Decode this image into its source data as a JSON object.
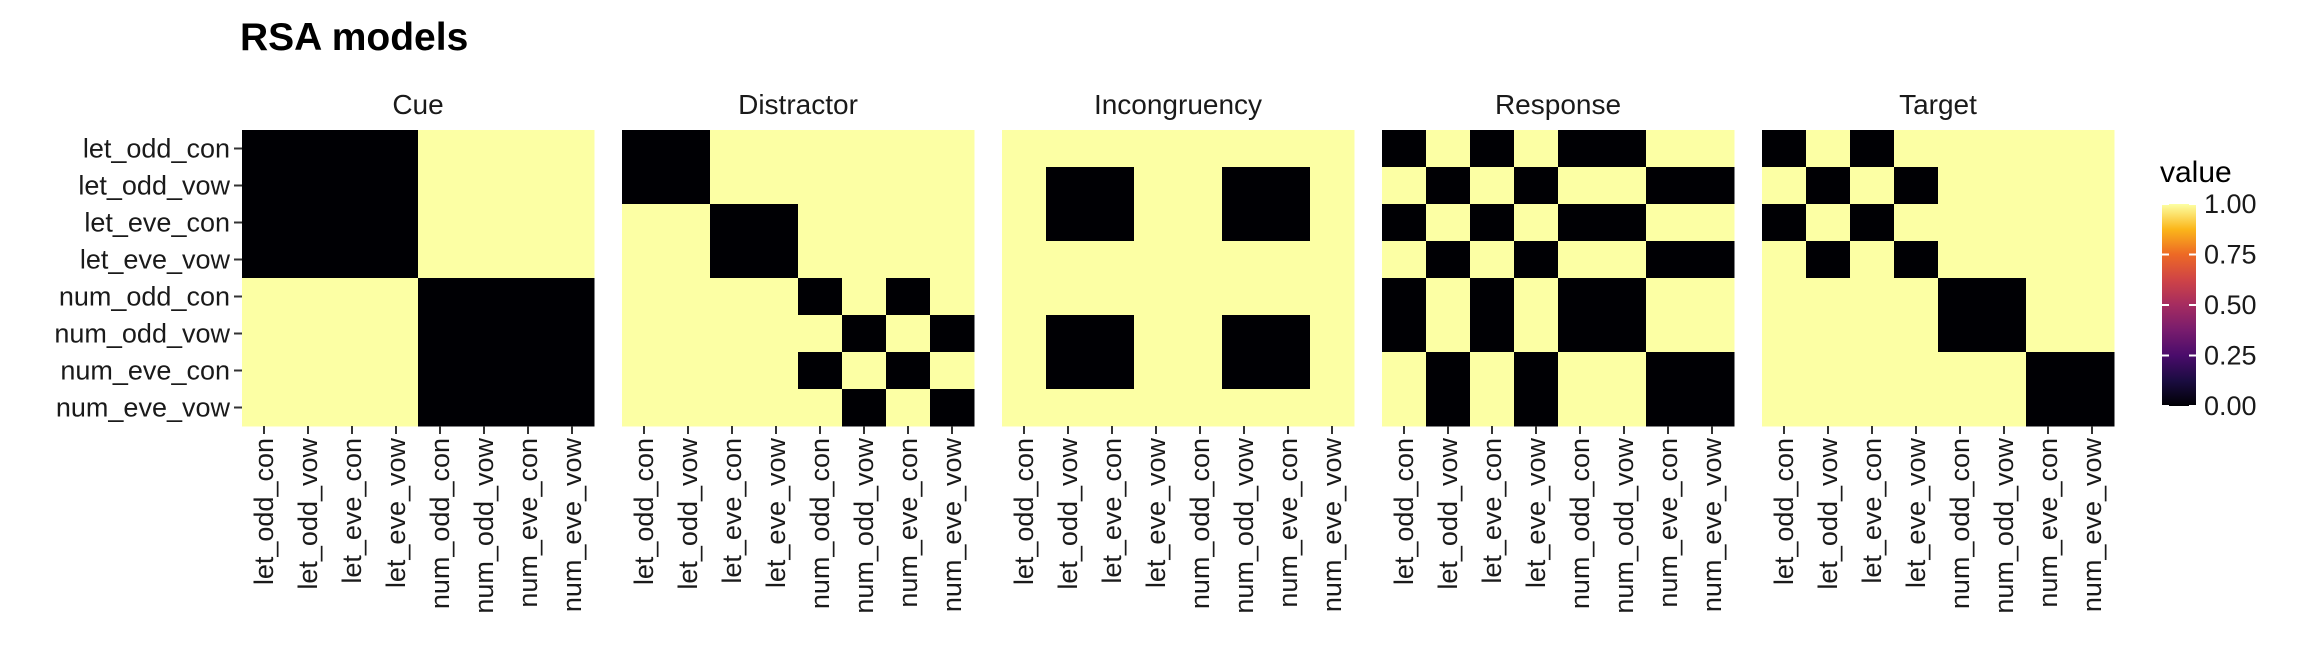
{
  "chart_data": {
    "type": "heatmap",
    "title": "RSA models",
    "labels": [
      "let_odd_con",
      "let_odd_vow",
      "let_eve_con",
      "let_eve_vow",
      "num_odd_con",
      "num_odd_vow",
      "num_eve_con",
      "num_eve_vow"
    ],
    "panels": [
      {
        "name": "Cue",
        "matrix": [
          [
            0,
            0,
            0,
            0,
            1,
            1,
            1,
            1
          ],
          [
            0,
            0,
            0,
            0,
            1,
            1,
            1,
            1
          ],
          [
            0,
            0,
            0,
            0,
            1,
            1,
            1,
            1
          ],
          [
            0,
            0,
            0,
            0,
            1,
            1,
            1,
            1
          ],
          [
            1,
            1,
            1,
            1,
            0,
            0,
            0,
            0
          ],
          [
            1,
            1,
            1,
            1,
            0,
            0,
            0,
            0
          ],
          [
            1,
            1,
            1,
            1,
            0,
            0,
            0,
            0
          ],
          [
            1,
            1,
            1,
            1,
            0,
            0,
            0,
            0
          ]
        ]
      },
      {
        "name": "Distractor",
        "matrix": [
          [
            0,
            0,
            1,
            1,
            1,
            1,
            1,
            1
          ],
          [
            0,
            0,
            1,
            1,
            1,
            1,
            1,
            1
          ],
          [
            1,
            1,
            0,
            0,
            1,
            1,
            1,
            1
          ],
          [
            1,
            1,
            0,
            0,
            1,
            1,
            1,
            1
          ],
          [
            1,
            1,
            1,
            1,
            0,
            1,
            0,
            1
          ],
          [
            1,
            1,
            1,
            1,
            1,
            0,
            1,
            0
          ],
          [
            1,
            1,
            1,
            1,
            0,
            1,
            0,
            1
          ],
          [
            1,
            1,
            1,
            1,
            1,
            0,
            1,
            0
          ]
        ]
      },
      {
        "name": "Incongruency",
        "matrix": [
          [
            1,
            1,
            1,
            1,
            1,
            1,
            1,
            1
          ],
          [
            1,
            0,
            0,
            1,
            1,
            0,
            0,
            1
          ],
          [
            1,
            0,
            0,
            1,
            1,
            0,
            0,
            1
          ],
          [
            1,
            1,
            1,
            1,
            1,
            1,
            1,
            1
          ],
          [
            1,
            1,
            1,
            1,
            1,
            1,
            1,
            1
          ],
          [
            1,
            0,
            0,
            1,
            1,
            0,
            0,
            1
          ],
          [
            1,
            0,
            0,
            1,
            1,
            0,
            0,
            1
          ],
          [
            1,
            1,
            1,
            1,
            1,
            1,
            1,
            1
          ]
        ]
      },
      {
        "name": "Response",
        "matrix": [
          [
            0,
            1,
            0,
            1,
            0,
            0,
            1,
            1
          ],
          [
            1,
            0,
            1,
            0,
            1,
            1,
            0,
            0
          ],
          [
            0,
            1,
            0,
            1,
            0,
            0,
            1,
            1
          ],
          [
            1,
            0,
            1,
            0,
            1,
            1,
            0,
            0
          ],
          [
            0,
            1,
            0,
            1,
            0,
            0,
            1,
            1
          ],
          [
            0,
            1,
            0,
            1,
            0,
            0,
            1,
            1
          ],
          [
            1,
            0,
            1,
            0,
            1,
            1,
            0,
            0
          ],
          [
            1,
            0,
            1,
            0,
            1,
            1,
            0,
            0
          ]
        ]
      },
      {
        "name": "Target",
        "matrix": [
          [
            0,
            1,
            0,
            1,
            1,
            1,
            1,
            1
          ],
          [
            1,
            0,
            1,
            0,
            1,
            1,
            1,
            1
          ],
          [
            0,
            1,
            0,
            1,
            1,
            1,
            1,
            1
          ],
          [
            1,
            0,
            1,
            0,
            1,
            1,
            1,
            1
          ],
          [
            1,
            1,
            1,
            1,
            0,
            0,
            1,
            1
          ],
          [
            1,
            1,
            1,
            1,
            0,
            0,
            1,
            1
          ],
          [
            1,
            1,
            1,
            1,
            1,
            1,
            0,
            0
          ],
          [
            1,
            1,
            1,
            1,
            1,
            1,
            0,
            0
          ]
        ]
      }
    ],
    "legend": {
      "title": "value",
      "ticks": [
        "1.00",
        "0.75",
        "0.50",
        "0.25",
        "0.00"
      ],
      "range": [
        0,
        1
      ],
      "colormap": "inferno",
      "colors": {
        "low": "#000004",
        "high": "#fcffa4"
      }
    },
    "grid": false
  }
}
